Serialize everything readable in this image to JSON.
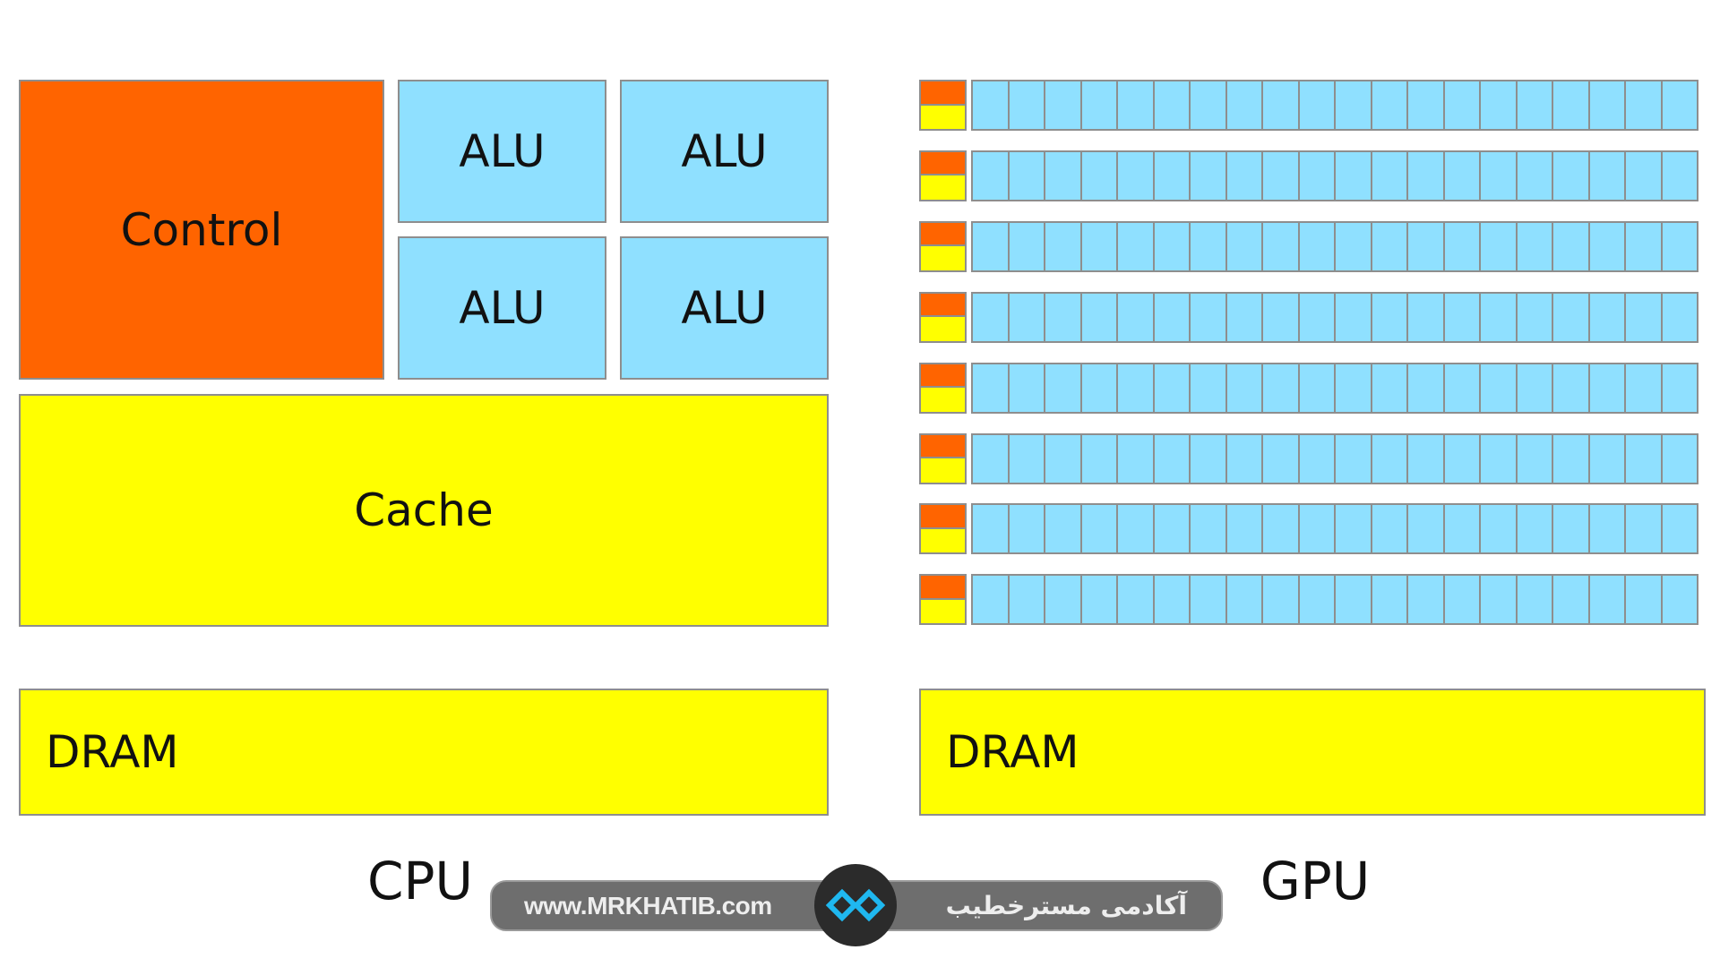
{
  "cpu": {
    "control": "Control",
    "alus": [
      "ALU",
      "ALU",
      "ALU",
      "ALU"
    ],
    "cache": "Cache",
    "dram": "DRAM",
    "caption": "CPU"
  },
  "gpu": {
    "rows": 8,
    "cells_per_row": 20,
    "dram": "DRAM",
    "caption": "GPU"
  },
  "watermark": {
    "url": "www.MRKHATIB.com",
    "name_fa": "آکادمی مسترخطیب",
    "icon": "mrkhatib-logo-icon"
  },
  "colors": {
    "control": "#ff6400",
    "alu": "#8fe0ff",
    "cache": "#ffff00",
    "border": "#8e8e8e"
  }
}
